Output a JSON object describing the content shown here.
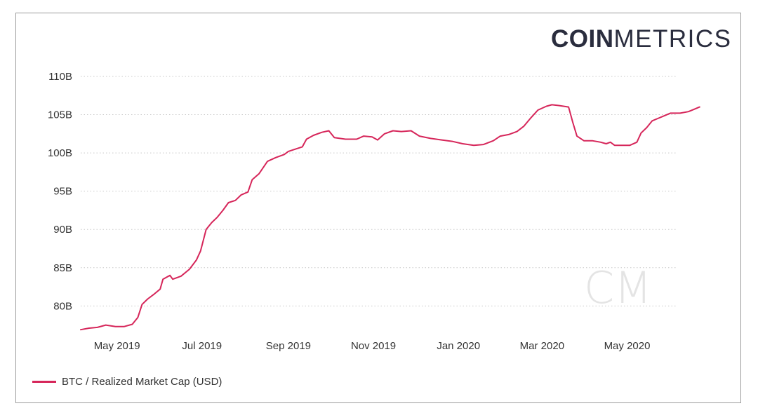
{
  "brand": {
    "logo_bold": "COIN",
    "logo_light": "METRICS",
    "watermark": "CM"
  },
  "colors": {
    "series": "#d6265a",
    "grid": "#c8c8c8",
    "text": "#333333",
    "logo": "#2a2d3e"
  },
  "chart_data": {
    "type": "line",
    "title": "",
    "xlabel": "",
    "ylabel": "",
    "grid": true,
    "legend_placement": "bottom-left",
    "ylim": [
      76000000000,
      110000000000
    ],
    "xlim": [
      "2019-04-05",
      "2020-06-06"
    ],
    "y_ticks": [
      {
        "value": 80000000000,
        "label": "80B"
      },
      {
        "value": 85000000000,
        "label": "85B"
      },
      {
        "value": 90000000000,
        "label": "90B"
      },
      {
        "value": 95000000000,
        "label": "95B"
      },
      {
        "value": 100000000000,
        "label": "100B"
      },
      {
        "value": 105000000000,
        "label": "105B"
      },
      {
        "value": 110000000000,
        "label": "110B"
      }
    ],
    "x_ticks": [
      {
        "date": "2019-05-01",
        "label": "May 2019"
      },
      {
        "date": "2019-07-01",
        "label": "Jul 2019"
      },
      {
        "date": "2019-09-01",
        "label": "Sep 2019"
      },
      {
        "date": "2019-11-01",
        "label": "Nov 2019"
      },
      {
        "date": "2020-01-01",
        "label": "Jan 2020"
      },
      {
        "date": "2020-03-01",
        "label": "Mar 2020"
      },
      {
        "date": "2020-05-01",
        "label": "May 2020"
      }
    ],
    "series": [
      {
        "name": "BTC / Realized Market Cap (USD)",
        "points": [
          [
            "2019-04-05",
            76.9
          ],
          [
            "2019-04-11",
            77.1
          ],
          [
            "2019-04-17",
            77.2
          ],
          [
            "2019-04-23",
            77.5
          ],
          [
            "2019-04-30",
            77.3
          ],
          [
            "2019-05-06",
            77.3
          ],
          [
            "2019-05-12",
            77.6
          ],
          [
            "2019-05-16",
            78.5
          ],
          [
            "2019-05-19",
            80.2
          ],
          [
            "2019-05-23",
            80.9
          ],
          [
            "2019-05-28",
            81.6
          ],
          [
            "2019-06-01",
            82.2
          ],
          [
            "2019-06-03",
            83.5
          ],
          [
            "2019-06-08",
            84.0
          ],
          [
            "2019-06-10",
            83.5
          ],
          [
            "2019-06-16",
            83.9
          ],
          [
            "2019-06-22",
            84.8
          ],
          [
            "2019-06-27",
            86.0
          ],
          [
            "2019-06-30",
            87.2
          ],
          [
            "2019-07-04",
            90.0
          ],
          [
            "2019-07-08",
            90.9
          ],
          [
            "2019-07-12",
            91.6
          ],
          [
            "2019-07-16",
            92.5
          ],
          [
            "2019-07-20",
            93.5
          ],
          [
            "2019-07-25",
            93.8
          ],
          [
            "2019-07-29",
            94.5
          ],
          [
            "2019-08-03",
            94.9
          ],
          [
            "2019-08-06",
            96.5
          ],
          [
            "2019-08-11",
            97.3
          ],
          [
            "2019-08-17",
            98.9
          ],
          [
            "2019-08-23",
            99.4
          ],
          [
            "2019-08-29",
            99.8
          ],
          [
            "2019-09-01",
            100.2
          ],
          [
            "2019-09-06",
            100.5
          ],
          [
            "2019-09-11",
            100.8
          ],
          [
            "2019-09-14",
            101.8
          ],
          [
            "2019-09-19",
            102.3
          ],
          [
            "2019-09-25",
            102.7
          ],
          [
            "2019-09-30",
            102.9
          ],
          [
            "2019-10-04",
            102.0
          ],
          [
            "2019-10-12",
            101.8
          ],
          [
            "2019-10-20",
            101.8
          ],
          [
            "2019-10-25",
            102.2
          ],
          [
            "2019-10-31",
            102.1
          ],
          [
            "2019-11-04",
            101.7
          ],
          [
            "2019-11-09",
            102.5
          ],
          [
            "2019-11-15",
            102.9
          ],
          [
            "2019-11-21",
            102.8
          ],
          [
            "2019-11-28",
            102.9
          ],
          [
            "2019-12-04",
            102.2
          ],
          [
            "2019-12-12",
            101.9
          ],
          [
            "2019-12-20",
            101.7
          ],
          [
            "2019-12-28",
            101.5
          ],
          [
            "2020-01-04",
            101.2
          ],
          [
            "2020-01-12",
            101.0
          ],
          [
            "2020-01-19",
            101.1
          ],
          [
            "2020-01-26",
            101.6
          ],
          [
            "2020-01-31",
            102.2
          ],
          [
            "2020-02-06",
            102.4
          ],
          [
            "2020-02-12",
            102.8
          ],
          [
            "2020-02-17",
            103.5
          ],
          [
            "2020-02-22",
            104.6
          ],
          [
            "2020-02-27",
            105.6
          ],
          [
            "2020-03-04",
            106.1
          ],
          [
            "2020-03-08",
            106.3
          ],
          [
            "2020-03-13",
            106.2
          ],
          [
            "2020-03-20",
            106.0
          ],
          [
            "2020-03-23",
            104.0
          ],
          [
            "2020-03-26",
            102.2
          ],
          [
            "2020-03-31",
            101.6
          ],
          [
            "2020-04-06",
            101.6
          ],
          [
            "2020-04-12",
            101.4
          ],
          [
            "2020-04-16",
            101.2
          ],
          [
            "2020-04-19",
            101.4
          ],
          [
            "2020-04-22",
            101.0
          ],
          [
            "2020-04-28",
            101.0
          ],
          [
            "2020-05-03",
            101.0
          ],
          [
            "2020-05-08",
            101.4
          ],
          [
            "2020-05-11",
            102.6
          ],
          [
            "2020-05-15",
            103.3
          ],
          [
            "2020-05-19",
            104.2
          ],
          [
            "2020-05-23",
            104.5
          ],
          [
            "2020-05-27",
            104.8
          ],
          [
            "2020-06-01",
            105.2
          ],
          [
            "2020-06-08",
            105.2
          ],
          [
            "2020-06-14",
            105.4
          ],
          [
            "2020-06-18",
            105.7
          ],
          [
            "2020-06-22",
            106.0
          ]
        ],
        "value_unit_multiplier": 1000000000
      }
    ]
  },
  "legend": {
    "label": "BTC / Realized Market Cap (USD)"
  }
}
